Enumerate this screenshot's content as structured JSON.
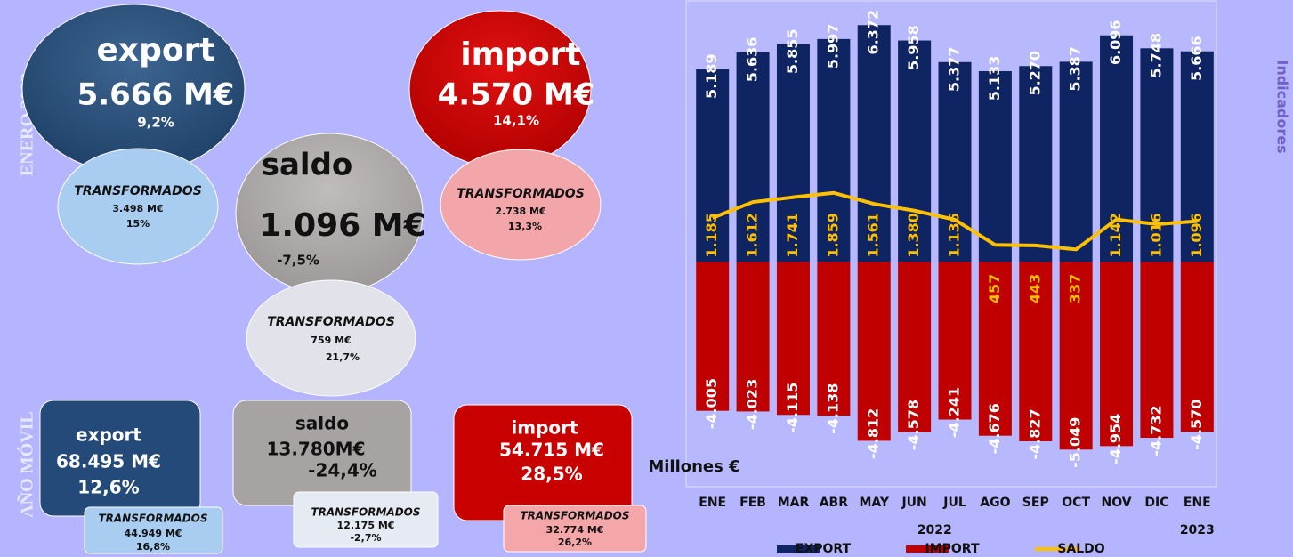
{
  "infographic": {
    "side_labels": [
      "ENERO 2023",
      "AÑO MÓVIL"
    ],
    "sidebar": "Indicadores",
    "enero": {
      "export": {
        "title": "export",
        "value": "5.666 M€",
        "change": "9,2%",
        "sub_title": "TRANSFORMADOS",
        "sub_value": "3.498 M€",
        "sub_change": "15%"
      },
      "saldo": {
        "title": "saldo",
        "value": "1.096 M€",
        "change": "-7,5%",
        "sub_title": "TRANSFORMADOS",
        "sub_value": "759 M€",
        "sub_change": "21,7%"
      },
      "import": {
        "title": "import",
        "value": "4.570 M€",
        "change": "14,1%",
        "sub_title": "TRANSFORMADOS",
        "sub_value": "2.738 M€",
        "sub_change": "13,3%"
      }
    },
    "movil": {
      "export": {
        "title": "export",
        "value": "68.495 M€",
        "change": "12,6%",
        "sub_title": "TRANSFORMADOS",
        "sub_value": "44.949 M€",
        "sub_change": "16,8%"
      },
      "saldo": {
        "title": "saldo",
        "value": "13.780M€",
        "change": "-24,4%",
        "sub_title": "TRANSFORMADOS",
        "sub_value": "12.175 M€",
        "sub_change": "-2,7%"
      },
      "import": {
        "title": "import",
        "value": "54.715 M€",
        "change": "28,5%",
        "sub_title": "TRANSFORMADOS",
        "sub_value": "32.774 M€",
        "sub_change": "26,2%"
      }
    }
  },
  "chart_data": {
    "type": "bar",
    "y_unit_label": "Millones €",
    "year_labels": [
      "2022",
      "2023"
    ],
    "categories": [
      "ENE",
      "FEB",
      "MAR",
      "ABR",
      "MAY",
      "JUN",
      "JUL",
      "AGO",
      "SEP",
      "OCT",
      "NOV",
      "DIC",
      "ENE"
    ],
    "ylim": [
      -6000,
      7000
    ],
    "series": [
      {
        "name": "EXPORT",
        "color": "#0f2463",
        "values": [
          5189,
          5636,
          5855,
          5997,
          6372,
          5958,
          5377,
          5133,
          5270,
          5387,
          6096,
          5748,
          5666
        ],
        "value_labels": [
          "5.189",
          "5.636",
          "5.855",
          "5.997",
          "6.372",
          "5.958",
          "5.377",
          "5.133",
          "5.270",
          "5.387",
          "6.096",
          "5.748",
          "5.666"
        ]
      },
      {
        "name": "IMPORT",
        "color": "#c00000",
        "values": [
          -4005,
          -4023,
          -4115,
          -4138,
          -4812,
          -4578,
          -4241,
          -4676,
          -4827,
          -5049,
          -4954,
          -4732,
          -4570
        ],
        "value_labels": [
          "-4.005",
          "-4.023",
          "-4.115",
          "-4.138",
          "-4.812",
          "-4.578",
          "-4.241",
          "-4.676",
          "-4.827",
          "-5.049",
          "-4.954",
          "-4.732",
          "-4.570"
        ]
      },
      {
        "name": "SALDO",
        "color": "#ffc000",
        "type": "line",
        "values": [
          1185,
          1612,
          1741,
          1859,
          1561,
          1380,
          1136,
          457,
          443,
          337,
          1142,
          1016,
          1096
        ],
        "value_labels": [
          "1.185",
          "1.612",
          "1.741",
          "1.859",
          "1.561",
          "1.380",
          "1.136",
          "457",
          "443",
          "337",
          "1.142",
          "1.016",
          "1.096"
        ]
      }
    ]
  }
}
